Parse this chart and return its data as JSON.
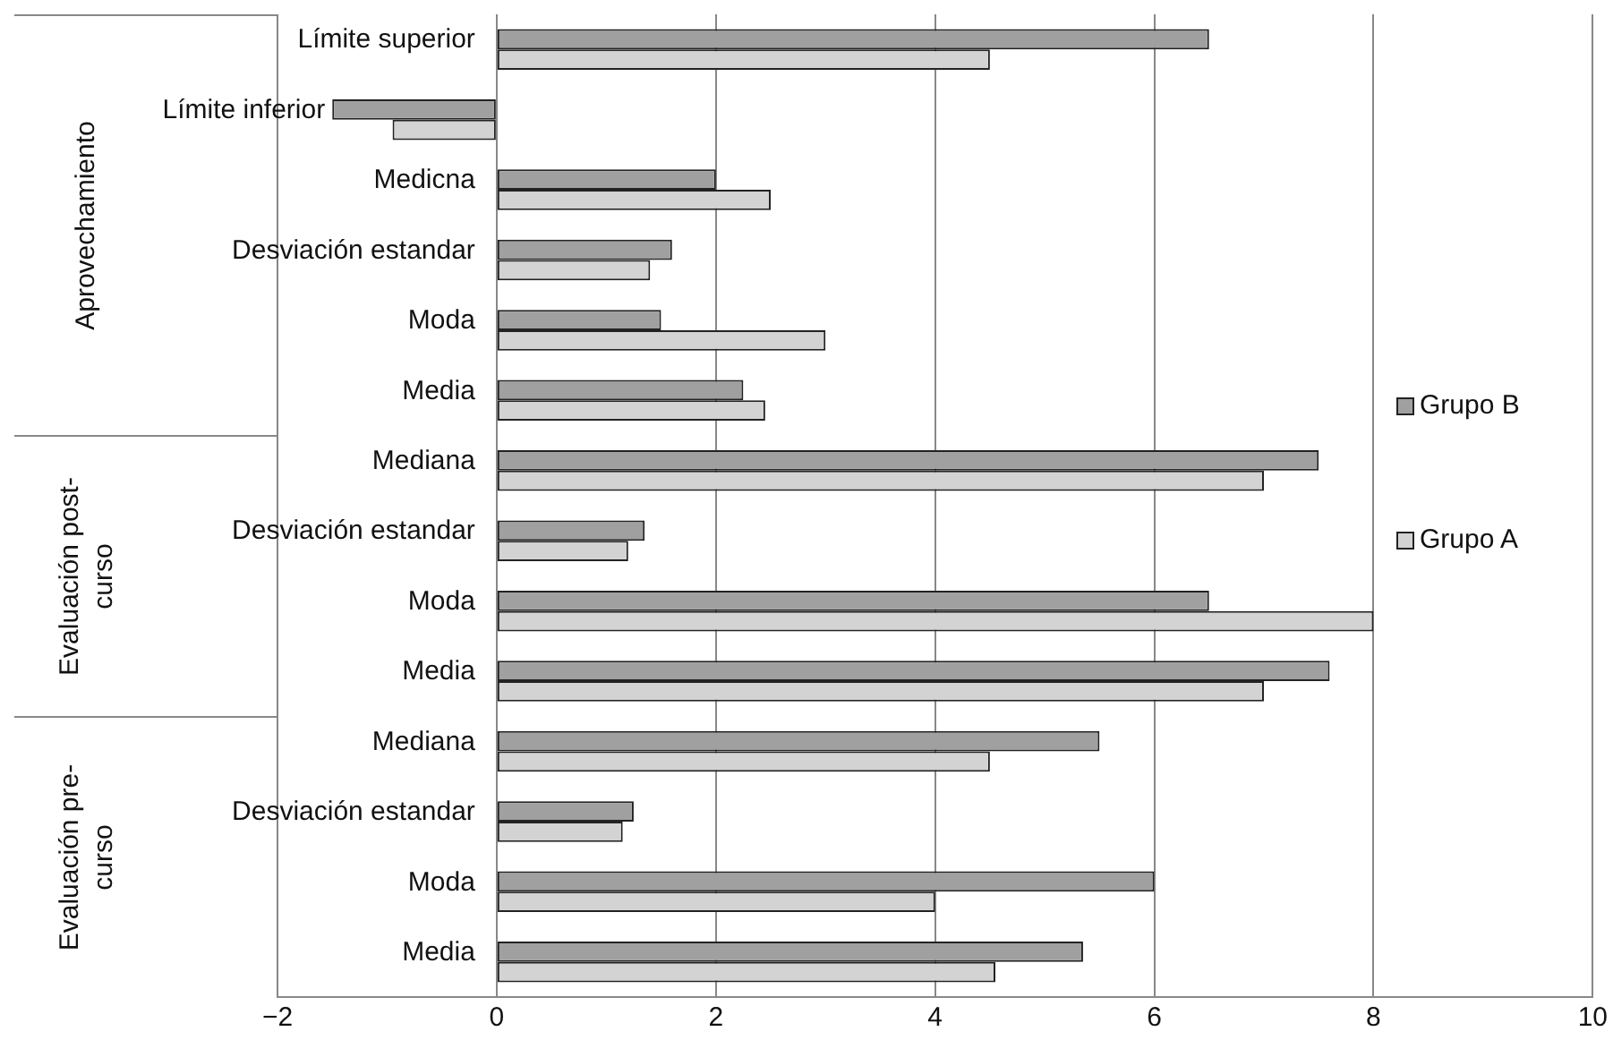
{
  "chart_data": {
    "type": "bar",
    "orientation": "horizontal",
    "categories": [
      "Límite superior",
      "Límite inferior",
      "Medicna",
      "Desviación estandar",
      "Moda",
      "Media",
      "Mediana",
      "Desviación estandar",
      "Moda",
      "Media",
      "Mediana",
      "Desviación estandar",
      "Moda",
      "Media"
    ],
    "series": [
      {
        "name": "Grupo B",
        "color": "#a0a0a0",
        "values": [
          6.5,
          -1.5,
          2.0,
          1.6,
          1.5,
          2.25,
          7.5,
          1.35,
          6.5,
          7.6,
          5.5,
          1.25,
          6.0,
          5.35
        ]
      },
      {
        "name": "Grupo A",
        "color": "#d3d3d3",
        "values": [
          4.5,
          -0.95,
          2.5,
          1.4,
          3.0,
          2.45,
          7.0,
          1.2,
          8.0,
          7.0,
          4.5,
          1.15,
          4.0,
          4.55
        ]
      }
    ],
    "xlim": [
      -2,
      10
    ],
    "xticks": [
      {
        "value": -2,
        "label": "−2"
      },
      0,
      2,
      4,
      6,
      8,
      10
    ],
    "grid": "x",
    "legend": "right",
    "annotations": [
      "Aprovechamiento",
      "Evaluación post-curso",
      "Evaluación pre-curso"
    ]
  }
}
